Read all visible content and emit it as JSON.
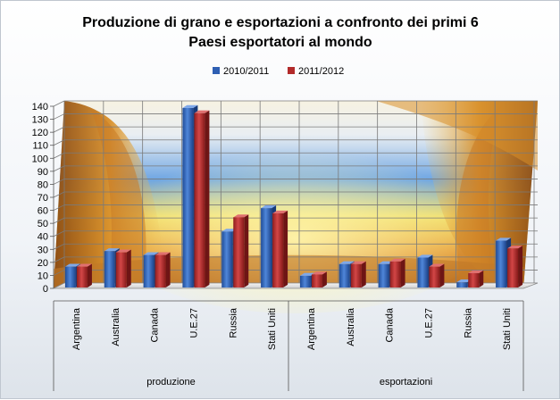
{
  "chart_data": {
    "type": "bar",
    "title": "Produzione di grano e esportazioni  a confronto dei primi 6\nPaesi esportatori al mondo",
    "title_lines": [
      "Produzione di grano e esportazioni  a confronto dei primi 6",
      "Paesi esportatori al mondo"
    ],
    "xlabel": "",
    "ylabel": "",
    "ylim": [
      0,
      140
    ],
    "yticks": [
      0,
      10,
      20,
      30,
      40,
      50,
      60,
      70,
      80,
      90,
      100,
      110,
      120,
      130,
      140
    ],
    "grid": true,
    "legend_position": "top",
    "groups": [
      {
        "label": "produzione",
        "categories": [
          "Argentina",
          "Australia",
          "Canada",
          "U.E.27",
          "Russia",
          "Stati Uniti"
        ]
      },
      {
        "label": "esportazioni",
        "categories": [
          "Argentina",
          "Australia",
          "Canada",
          "U.E.27",
          "Russia",
          "Stati Uniti"
        ]
      }
    ],
    "series": [
      {
        "name": "2010/2011",
        "color": "#2e5fb3",
        "values": [
          16,
          28,
          25,
          138,
          43,
          61,
          9,
          18,
          18,
          23,
          4,
          36
        ]
      },
      {
        "name": "2011/2012",
        "color": "#b22a2a",
        "values": [
          16,
          27,
          25,
          134,
          54,
          57,
          10,
          18,
          20,
          16,
          11,
          30
        ]
      }
    ]
  }
}
